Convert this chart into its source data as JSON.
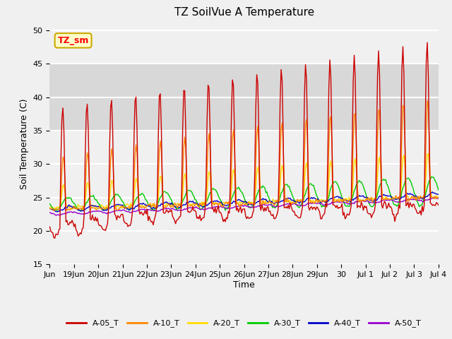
{
  "title": "TZ SoilVue A Temperature",
  "ylabel": "Soil Temperature (C)",
  "xlabel": "Time",
  "ylim": [
    15,
    51
  ],
  "yticks": [
    15,
    20,
    25,
    30,
    35,
    40,
    45,
    50
  ],
  "background_color": "#f0f0f0",
  "plot_bg_color": "#f0f0f0",
  "grid_color": "white",
  "shaded_band_low": 35,
  "shaded_band_high": 45,
  "shaded_band_color": "#d8d8d8",
  "annotation_text": "TZ_sm",
  "annotation_bg": "#ffffcc",
  "annotation_border": "#ccaa00",
  "series_colors": {
    "A-05_T": "#cc0000",
    "A-10_T": "#ff8800",
    "A-20_T": "#ffdd00",
    "A-30_T": "#00cc00",
    "A-40_T": "#0000cc",
    "A-50_T": "#9900cc"
  },
  "legend_labels": [
    "A-05_T",
    "A-10_T",
    "A-20_T",
    "A-30_T",
    "A-40_T",
    "A-50_T"
  ],
  "xtick_labels": [
    "Jun",
    "19Jun",
    "20Jun",
    "21Jun",
    "22Jun",
    "23Jun",
    "24Jun",
    "25Jun",
    "26Jun",
    "27Jun",
    "28Jun",
    "29Jun",
    "30",
    "Jul 1",
    "Jul 2",
    "Jul 3",
    "Jul 4"
  ]
}
